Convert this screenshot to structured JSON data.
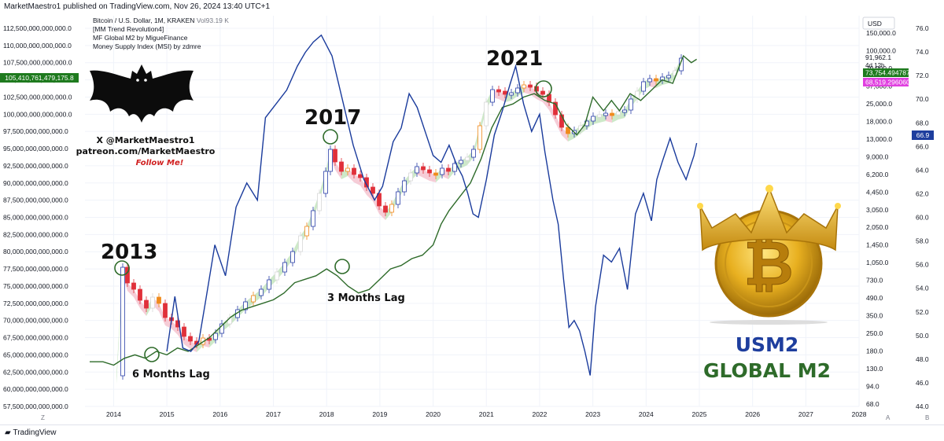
{
  "header": {
    "published": "MarketMaestro1 published on TradingView.com, Nov 26, 2024 13:40 UTC+1"
  },
  "legend": {
    "symbol": "Bitcoin / U.S. Dollar, 1M, KRAKEN",
    "volume": "Vol93.19 K",
    "indicators": [
      "[MM Trend Revolution4]",
      "MF Global M2 by MigueFinance",
      "Money Supply Index (MSI) by zdmre"
    ]
  },
  "badges": {
    "left_value": "105,410,761,479,175.8",
    "usd_label": "USD",
    "price_a": "91,962.1",
    "countdown": "4d 12h",
    "price_b": "73,754.494787",
    "price_c": "68,519.296060",
    "msi_value": "66.9"
  },
  "watermark": {
    "handle": "X @MarketMaestro1",
    "patreon": "patreon.com/MarketMaestro",
    "follow": "Follow Me!"
  },
  "annotations": {
    "y2013": "2013",
    "y2017": "2017",
    "y2021": "2021",
    "lag6": "6 Months Lag",
    "lag3": "3 Months Lag",
    "usm2": "USM2",
    "global_m2": "GLOBAL M2"
  },
  "footer": {
    "brand": "TradingView",
    "corner_z": "Z",
    "corner_a": "A",
    "corner_b": "B"
  },
  "colors": {
    "usm2_line": "#1a3b9c",
    "global_m2_line": "#2e6b2a",
    "candle_up": "#2a3fa8",
    "candle_down": "#e0303a",
    "candle_neutral": "#d8d8d8",
    "trend_up_fill": "#b8e0b0",
    "trend_down_fill": "#f2b8c6",
    "usm2_badge": "#1e3e9e",
    "btc_badge": "#1e7a1e",
    "msi_badge": "#e040e0"
  },
  "chart_data": {
    "type": "line",
    "left_axis": {
      "label": "",
      "ticks": [
        "112,500,000,000,000.0",
        "110,000,000,000,000.0",
        "107,500,000,000,000.0",
        "105,000,000,000,000.0",
        "102,500,000,000,000.0",
        "100,000,000,000,000.0",
        "97,500,000,000,000.0",
        "95,000,000,000,000.0",
        "92,500,000,000,000.0",
        "90,000,000,000,000.0",
        "87,500,000,000,000.0",
        "85,000,000,000,000.0",
        "82,500,000,000,000.0",
        "80,000,000,000,000.0",
        "77,500,000,000,000.0",
        "75,000,000,000,000.0",
        "72,500,000,000,000.0",
        "70,000,000,000,000.0",
        "67,500,000,000,000.0",
        "65,000,000,000,000.0",
        "62,500,000,000,000.0",
        "60,000,000,000,000.0",
        "57,500,000,000,000.0"
      ],
      "range": [
        57500000000000,
        112500000000000
      ]
    },
    "price_axis": {
      "scale": "log",
      "ticks": [
        "150,000.0",
        "100,000.0",
        "70,000.0",
        "37,000.0",
        "25,000.0",
        "18,000.0",
        "13,000.0",
        "9,000.0",
        "6,200.0",
        "4,450.0",
        "3,050.0",
        "2,050.0",
        "1,450.0",
        "1,050.0",
        "730.0",
        "490.0",
        "350.0",
        "250.0",
        "180.0",
        "130.0",
        "94.0",
        "68.0"
      ]
    },
    "msi_axis": {
      "ticks": [
        "76.0",
        "74.0",
        "72.0",
        "70.0",
        "68.0",
        "66.0",
        "64.0",
        "62.0",
        "60.0",
        "58.0",
        "56.0",
        "54.0",
        "52.0",
        "50.0",
        "48.0",
        "46.0",
        "44.0"
      ],
      "range": [
        44,
        76
      ]
    },
    "x_axis": {
      "ticks": [
        "2014",
        "2015",
        "2016",
        "2017",
        "2018",
        "2019",
        "2020",
        "2021",
        "2022",
        "2023",
        "2024",
        "2025",
        "2026",
        "2027",
        "2028"
      ],
      "range": [
        2013.55,
        2028.4
      ]
    },
    "series": [
      {
        "name": "USM2",
        "color": "#1a3b9c",
        "points": [
          [
            2015.0,
            65.5
          ],
          [
            2015.15,
            73.5
          ],
          [
            2015.3,
            66.0
          ],
          [
            2015.45,
            65.5
          ],
          [
            2015.6,
            67.0
          ],
          [
            2015.72,
            72.5
          ],
          [
            2015.9,
            81.0
          ],
          [
            2016.1,
            76.5
          ],
          [
            2016.3,
            86.5
          ],
          [
            2016.5,
            90.0
          ],
          [
            2016.7,
            87.5
          ],
          [
            2016.85,
            99.5
          ],
          [
            2017.05,
            101.5
          ],
          [
            2017.25,
            103.5
          ],
          [
            2017.45,
            107.0
          ],
          [
            2017.6,
            109.0
          ],
          [
            2017.75,
            110.5
          ],
          [
            2017.9,
            111.5
          ],
          [
            2018.1,
            108.5
          ],
          [
            2018.3,
            102.0
          ],
          [
            2018.5,
            95.5
          ],
          [
            2018.7,
            90.5
          ],
          [
            2018.9,
            87.5
          ],
          [
            2019.05,
            89.5
          ],
          [
            2019.25,
            96.0
          ],
          [
            2019.4,
            98.0
          ],
          [
            2019.55,
            103.0
          ],
          [
            2019.7,
            101.0
          ],
          [
            2019.85,
            97.5
          ],
          [
            2020.0,
            94.0
          ],
          [
            2020.15,
            93.0
          ],
          [
            2020.3,
            95.5
          ],
          [
            2020.45,
            92.5
          ],
          [
            2020.55,
            91.0
          ],
          [
            2020.65,
            88.5
          ],
          [
            2020.75,
            85.5
          ],
          [
            2020.85,
            85.0
          ],
          [
            2021.0,
            90.5
          ],
          [
            2021.15,
            97.0
          ],
          [
            2021.3,
            100.5
          ],
          [
            2021.45,
            104.5
          ],
          [
            2021.55,
            107.0
          ],
          [
            2021.7,
            101.5
          ],
          [
            2021.85,
            97.5
          ],
          [
            2022.0,
            100.0
          ],
          [
            2022.1,
            94.5
          ],
          [
            2022.25,
            87.5
          ],
          [
            2022.35,
            84.0
          ],
          [
            2022.45,
            76.0
          ],
          [
            2022.55,
            69.0
          ],
          [
            2022.65,
            70.0
          ],
          [
            2022.75,
            68.5
          ],
          [
            2022.85,
            65.5
          ],
          [
            2022.95,
            62.0
          ],
          [
            2023.05,
            72.0
          ],
          [
            2023.2,
            79.5
          ],
          [
            2023.35,
            78.5
          ],
          [
            2023.5,
            80.5
          ],
          [
            2023.65,
            74.5
          ],
          [
            2023.8,
            85.5
          ],
          [
            2023.95,
            88.5
          ],
          [
            2024.1,
            84.5
          ],
          [
            2024.2,
            90.5
          ],
          [
            2024.3,
            93.0
          ],
          [
            2024.45,
            96.5
          ],
          [
            2024.6,
            93.0
          ],
          [
            2024.75,
            90.5
          ],
          [
            2024.9,
            94.0
          ],
          [
            2024.95,
            95.8
          ]
        ]
      },
      {
        "name": "GLOBAL M2",
        "color": "#2e6b2a",
        "points": [
          [
            2013.55,
            64.0
          ],
          [
            2013.8,
            64.0
          ],
          [
            2014.0,
            63.5
          ],
          [
            2014.2,
            64.5
          ],
          [
            2014.4,
            65.0
          ],
          [
            2014.6,
            64.5
          ],
          [
            2014.8,
            65.5
          ],
          [
            2015.0,
            65.0
          ],
          [
            2015.2,
            66.0
          ],
          [
            2015.4,
            65.5
          ],
          [
            2015.6,
            66.5
          ],
          [
            2015.8,
            67.5
          ],
          [
            2016.0,
            69.0
          ],
          [
            2016.2,
            70.5
          ],
          [
            2016.4,
            71.5
          ],
          [
            2016.6,
            72.0
          ],
          [
            2016.8,
            72.5
          ],
          [
            2017.0,
            73.0
          ],
          [
            2017.2,
            74.0
          ],
          [
            2017.4,
            75.5
          ],
          [
            2017.6,
            76.0
          ],
          [
            2017.8,
            76.5
          ],
          [
            2018.0,
            77.5
          ],
          [
            2018.2,
            76.5
          ],
          [
            2018.4,
            75.0
          ],
          [
            2018.6,
            74.0
          ],
          [
            2018.8,
            74.5
          ],
          [
            2019.0,
            76.0
          ],
          [
            2019.2,
            77.5
          ],
          [
            2019.4,
            78.0
          ],
          [
            2019.6,
            79.0
          ],
          [
            2019.8,
            79.5
          ],
          [
            2020.0,
            81.0
          ],
          [
            2020.15,
            84.0
          ],
          [
            2020.3,
            86.0
          ],
          [
            2020.5,
            88.0
          ],
          [
            2020.7,
            90.0
          ],
          [
            2020.9,
            93.5
          ],
          [
            2021.1,
            98.0
          ],
          [
            2021.3,
            101.0
          ],
          [
            2021.5,
            101.5
          ],
          [
            2021.7,
            102.5
          ],
          [
            2021.9,
            103.0
          ],
          [
            2022.1,
            102.0
          ],
          [
            2022.3,
            101.5
          ],
          [
            2022.5,
            98.5
          ],
          [
            2022.7,
            97.0
          ],
          [
            2022.85,
            98.5
          ],
          [
            2023.0,
            102.5
          ],
          [
            2023.2,
            100.5
          ],
          [
            2023.35,
            102.0
          ],
          [
            2023.5,
            100.5
          ],
          [
            2023.7,
            103.0
          ],
          [
            2023.9,
            102.0
          ],
          [
            2024.1,
            103.5
          ],
          [
            2024.3,
            105.0
          ],
          [
            2024.5,
            104.5
          ],
          [
            2024.7,
            108.5
          ],
          [
            2024.85,
            107.5
          ],
          [
            2024.95,
            108.0
          ]
        ]
      }
    ],
    "annotated_lags": [
      "6 Months Lag",
      "3 Months Lag"
    ]
  }
}
